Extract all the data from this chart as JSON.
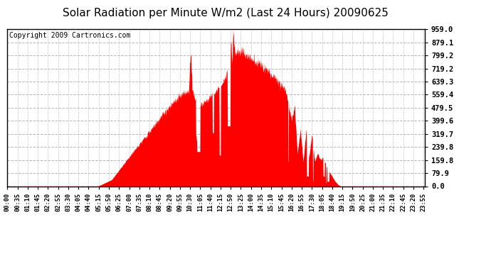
{
  "title": "Solar Radiation per Minute W/m2 (Last 24 Hours) 20090625",
  "copyright": "Copyright 2009 Cartronics.com",
  "ymin": 0.0,
  "ymax": 959.0,
  "yticks": [
    0.0,
    79.9,
    159.8,
    239.8,
    319.7,
    399.6,
    479.5,
    559.4,
    639.3,
    719.2,
    799.2,
    879.1,
    959.0
  ],
  "bg_color": "#ffffff",
  "plot_bg_color": "#ffffff",
  "fill_color": "#ff0000",
  "line_color": "#ff0000",
  "grid_color": "#b0b0b0",
  "dashed_line_color": "#ff0000",
  "title_fontsize": 11,
  "copyright_fontsize": 7
}
